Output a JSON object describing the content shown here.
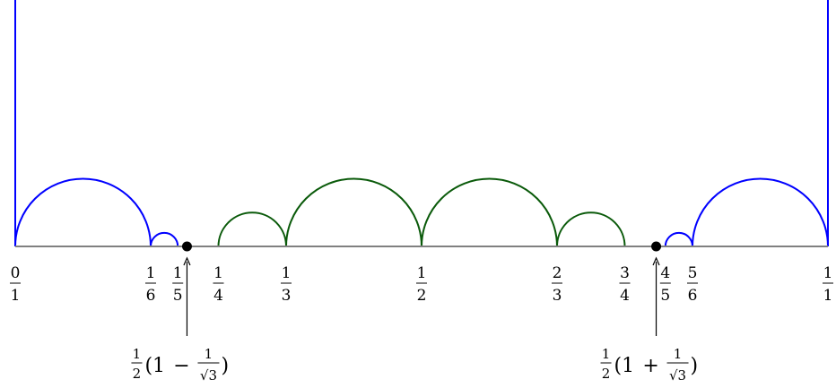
{
  "colors": {
    "outer_arcs": "#0000ff",
    "inner_arcs": "#0a5a0a",
    "axis": "#808080",
    "points": "#000000"
  },
  "fractions": [
    {
      "num": "0",
      "den": "1",
      "value": 0
    },
    {
      "num": "1",
      "den": "6",
      "value": 0.16666667
    },
    {
      "num": "1",
      "den": "5",
      "value": 0.2
    },
    {
      "num": "1",
      "den": "4",
      "value": 0.25
    },
    {
      "num": "1",
      "den": "3",
      "value": 0.33333333
    },
    {
      "num": "1",
      "den": "2",
      "value": 0.5
    },
    {
      "num": "2",
      "den": "3",
      "value": 0.66666667
    },
    {
      "num": "3",
      "den": "4",
      "value": 0.75
    },
    {
      "num": "4",
      "den": "5",
      "value": 0.8
    },
    {
      "num": "5",
      "den": "6",
      "value": 0.83333333
    },
    {
      "num": "1",
      "den": "1",
      "value": 1
    }
  ],
  "geodesics": [
    {
      "from": 0,
      "to": 0.16666667,
      "group": "outer"
    },
    {
      "from": 0.16666667,
      "to": 0.2,
      "group": "outer"
    },
    {
      "from": 0.8,
      "to": 0.83333333,
      "group": "outer"
    },
    {
      "from": 0.83333333,
      "to": 1,
      "group": "outer"
    },
    {
      "from": 0.25,
      "to": 0.33333333,
      "group": "inner"
    },
    {
      "from": 0.33333333,
      "to": 0.5,
      "group": "inner"
    },
    {
      "from": 0.5,
      "to": 0.66666667,
      "group": "inner"
    },
    {
      "from": 0.66666667,
      "to": 0.75,
      "group": "inner"
    }
  ],
  "vertical_geodesics": [
    0,
    1
  ],
  "points": [
    {
      "value": 0.21132487,
      "label": {
        "sign": "−"
      }
    },
    {
      "value": 0.78867513,
      "label": {
        "sign": "+"
      }
    }
  ],
  "point_label_parts": {
    "half_num": "1",
    "half_den": "2",
    "open": "(1",
    "inner_num": "1",
    "sqrt": "√3",
    "close": ")"
  }
}
